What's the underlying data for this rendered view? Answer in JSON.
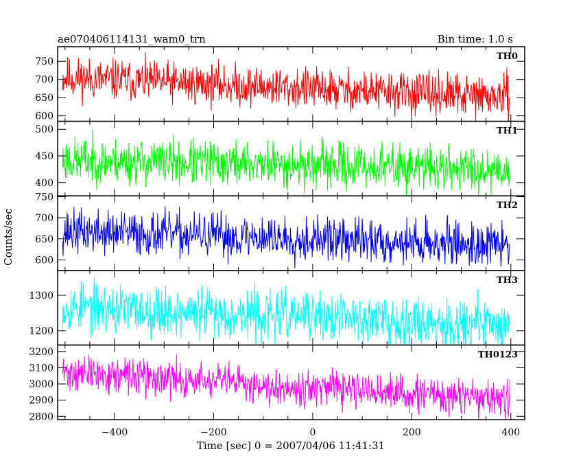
{
  "chart_data": {
    "type": "line",
    "title": "ae070406114131_wam0_trn",
    "bin_time_label": "Bin time: 1.0 s",
    "xlabel": "Time [sec] 0 = 2007/04/06 11:41:31",
    "ylabel": "Counts/sec",
    "xlim": [
      -515,
      428
    ],
    "x_ticks": [
      -400,
      -200,
      0,
      200,
      400
    ],
    "x_tick_labels": [
      "−400",
      "−200",
      "0",
      "200",
      "400"
    ],
    "x_range": [
      -505,
      398
    ],
    "panels": [
      {
        "name": "TH0",
        "color": "#ff0000",
        "ylim": [
          585,
          790
        ],
        "y_ticks": [
          600,
          650,
          700,
          750
        ],
        "y_tick_labels": [
          "600",
          "650",
          "700",
          "750"
        ],
        "trend_start": 705,
        "trend_end": 650,
        "noise_sd": 28,
        "seed": 11
      },
      {
        "name": "TH1",
        "color": "#00ff00",
        "ylim": [
          375,
          515
        ],
        "y_ticks": [
          400,
          450,
          500
        ],
        "y_tick_labels": [
          "400",
          "450",
          "500"
        ],
        "trend_start": 442,
        "trend_end": 425,
        "noise_sd": 21,
        "seed": 23
      },
      {
        "name": "TH2",
        "color": "#0000ff",
        "ylim": [
          575,
          752
        ],
        "y_ticks": [
          600,
          650,
          700,
          750
        ],
        "y_tick_labels": [
          "600",
          "650",
          "700",
          "750"
        ],
        "trend_start": 668,
        "trend_end": 635,
        "noise_sd": 26,
        "seed": 37
      },
      {
        "name": "TH3",
        "color": "#00ffff",
        "ylim": [
          1160,
          1370
        ],
        "y_ticks": [
          1200,
          1300
        ],
        "y_tick_labels": [
          "1200",
          "1300"
        ],
        "trend_start": 1268,
        "trend_end": 1215,
        "noise_sd": 35,
        "seed": 53
      },
      {
        "name": "TH0123",
        "color": "#ff00ff",
        "ylim": [
          2780,
          3240
        ],
        "y_ticks": [
          2800,
          2900,
          3000,
          3100,
          3200
        ],
        "y_tick_labels": [
          "2800",
          "2900",
          "3000",
          "3100",
          "3200"
        ],
        "trend_start": 3070,
        "trend_end": 2900,
        "noise_sd": 55,
        "seed": 71
      }
    ]
  }
}
